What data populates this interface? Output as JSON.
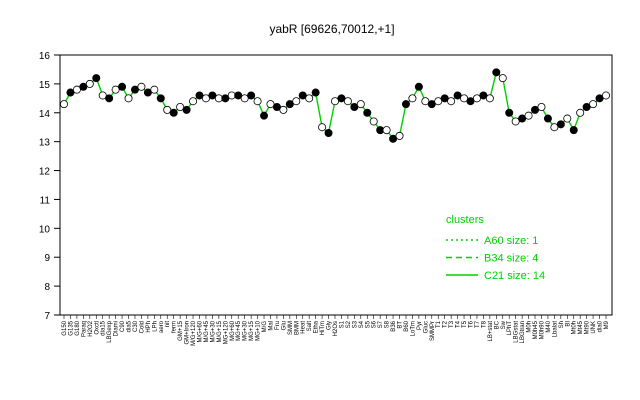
{
  "chart_data": {
    "type": "line",
    "title": "yabR [69626,70012,+1]",
    "xlabel": "",
    "ylabel": "",
    "ylim": [
      7,
      16
    ],
    "yticks": [
      7,
      8,
      9,
      10,
      11,
      12,
      13,
      14,
      15,
      16
    ],
    "grid": false,
    "x_tick_labels": [
      "G150",
      "G135",
      "G180",
      "Paraq",
      "H2O2",
      "Oxctl",
      "dia15",
      "LBGexp",
      "Diami",
      "C90",
      "dia5",
      "C30",
      "Cold",
      "HPh",
      "LPh",
      "aero",
      "nit",
      "ferm",
      "GM+15",
      "GM+Iron",
      "M/G+120",
      "M/G+60",
      "M/G+45",
      "M/G+30",
      "M/G+15",
      "MG+120",
      "MG+60",
      "MG+45",
      "MG+30",
      "MG+15",
      "MG+10",
      "M/G",
      "Mal",
      "Fru",
      "Glu",
      "SMM",
      "BMM",
      "Heat",
      "Salt",
      "Etha",
      "HiTm",
      "Gly",
      "H2Os",
      "S1",
      "S2",
      "S3",
      "S4",
      "S5",
      "S6",
      "S7",
      "S8",
      "B36",
      "BT",
      "B60",
      "LoTm",
      "Pyr",
      "Gluc",
      "SMMPr",
      "T1",
      "T2",
      "T3",
      "T4",
      "T5",
      "T6",
      "T7",
      "T8",
      "LB+stat",
      "BC",
      "Sw",
      "LPhT",
      "LBGstat",
      "LBGtran",
      "M0h",
      "M0h45",
      "M0h90",
      "M40",
      "Lbalat",
      "Sh",
      "BI",
      "Mt0h",
      "Mt45",
      "Mt90",
      "UNK",
      "dia0",
      "M9"
    ],
    "series": [
      {
        "values": [
          14.3,
          14.7,
          14.8,
          14.9,
          15.0,
          15.2,
          14.6,
          14.5,
          14.8,
          14.9,
          14.5,
          14.8,
          14.9,
          14.7,
          14.8,
          14.5,
          14.1,
          14.0,
          14.2,
          14.1,
          14.4,
          14.6,
          14.5,
          14.6,
          14.5,
          14.5,
          14.6,
          14.6,
          14.5,
          14.6,
          14.4,
          13.9,
          14.3,
          14.2,
          14.1,
          14.3,
          14.4,
          14.6,
          14.5,
          14.7,
          13.5,
          13.3,
          14.4,
          14.5,
          14.4,
          14.2,
          14.3,
          14.0,
          13.7,
          13.4,
          13.4,
          13.1,
          13.2,
          14.3,
          14.5,
          14.9,
          14.4,
          14.3,
          14.4,
          14.5,
          14.4,
          14.6,
          14.5,
          14.4,
          14.5,
          14.6,
          14.5,
          15.4,
          15.2,
          14.0,
          13.7,
          13.8,
          13.9,
          14.1,
          14.2,
          13.8,
          13.5,
          13.6,
          13.8,
          13.4,
          14.0,
          14.2,
          14.3,
          14.5,
          14.6
        ]
      }
    ],
    "legend": {
      "title": "clusters",
      "position": "right",
      "entries": [
        {
          "label": "A60 size: 1",
          "style": "dotted",
          "color": "#00d000"
        },
        {
          "label": "B34 size: 4",
          "style": "dashed",
          "color": "#00d000"
        },
        {
          "label": "C21 size: 14",
          "style": "solid",
          "color": "#00d000"
        }
      ]
    },
    "line_color": "#00d000",
    "marker_colors": [
      "#ffffff",
      "#000000"
    ]
  }
}
